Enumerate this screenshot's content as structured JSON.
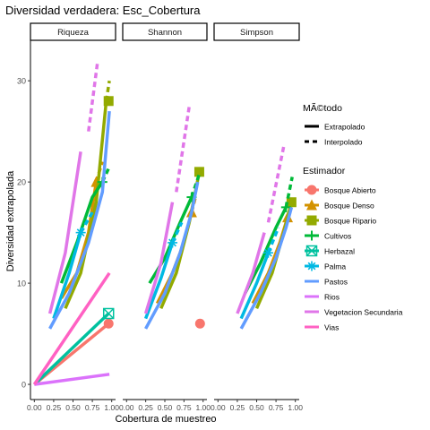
{
  "chart_data": {
    "type": "line",
    "title": "Diversidad verdadera: Esc_Cobertura",
    "xlabel": "Cobertura de muestreo",
    "ylabel": "Diversidad extrapolada",
    "xlim": [
      -0.05,
      1.05
    ],
    "ylim": [
      -1.5,
      34
    ],
    "x_ticks": [
      0.0,
      0.25,
      0.5,
      0.75,
      1.0
    ],
    "x_tick_labels": [
      "0.00",
      "0.25",
      "0.50",
      "0.75",
      "1.00"
    ],
    "y_ticks": [
      0,
      10,
      20,
      30
    ],
    "y_tick_labels": [
      "0",
      "10",
      "20",
      "30"
    ],
    "grid": false,
    "facets": [
      "Riqueza",
      "Shannon",
      "Simpson"
    ],
    "legend_position": "right",
    "legend_method_title": "MÃ©todo",
    "legend_methods": [
      "Extrapolado",
      "Interpolado"
    ],
    "legend_estimator_title": "Estimador",
    "series": [
      {
        "name": "Bosque Abierto",
        "color": "#F8766D",
        "shape": "circle",
        "Riqueza": {
          "interp": [
            [
              0.0,
              0
            ],
            [
              0.96,
              6
            ]
          ],
          "extrap": [],
          "point": [
            0.96,
            6
          ]
        },
        "Shannon": {
          "interp": [],
          "extrap": [],
          "point": [
            0.96,
            6
          ]
        },
        "Simpson": {
          "interp": [],
          "extrap": [],
          "point": null
        }
      },
      {
        "name": "Bosque Denso",
        "color": "#D39200",
        "shape": "triangle",
        "Riqueza": {
          "interp": [
            [
              0.35,
              8.5
            ],
            [
              0.55,
              11
            ],
            [
              0.7,
              15
            ],
            [
              0.8,
              20
            ]
          ],
          "extrap": [
            [
              0.8,
              20
            ],
            [
              0.88,
              22
            ]
          ],
          "point": [
            0.8,
            20
          ]
        },
        "Shannon": {
          "interp": [
            [
              0.4,
              8
            ],
            [
              0.6,
              11
            ],
            [
              0.75,
              14
            ],
            [
              0.85,
              17
            ]
          ],
          "extrap": [
            [
              0.85,
              17
            ],
            [
              0.9,
              18.5
            ]
          ],
          "point": [
            0.85,
            17
          ]
        },
        "Simpson": {
          "interp": [
            [
              0.45,
              8
            ],
            [
              0.65,
              11
            ],
            [
              0.8,
              14
            ],
            [
              0.9,
              16.5
            ]
          ],
          "extrap": [
            [
              0.9,
              16.5
            ],
            [
              0.94,
              17.5
            ]
          ],
          "point": [
            0.9,
            16.5
          ]
        }
      },
      {
        "name": "Bosque Ripario",
        "color": "#93AA00",
        "shape": "square",
        "Riqueza": {
          "interp": [
            [
              0.4,
              7.5
            ],
            [
              0.6,
              11
            ],
            [
              0.8,
              18
            ],
            [
              0.93,
              28
            ]
          ],
          "extrap": [
            [
              0.93,
              28
            ],
            [
              0.97,
              30
            ]
          ],
          "point": [
            0.96,
            28
          ]
        },
        "Shannon": {
          "interp": [
            [
              0.45,
              7.5
            ],
            [
              0.65,
              11
            ],
            [
              0.82,
              16
            ],
            [
              0.95,
              21
            ]
          ],
          "extrap": [],
          "point": [
            0.95,
            21
          ]
        },
        "Simpson": {
          "interp": [
            [
              0.5,
              7.5
            ],
            [
              0.7,
              11
            ],
            [
              0.85,
              15
            ],
            [
              0.95,
              18
            ]
          ],
          "extrap": [],
          "point": [
            0.95,
            18
          ]
        }
      },
      {
        "name": "Cultivos",
        "color": "#00BA38",
        "shape": "plus",
        "Riqueza": {
          "interp": [
            [
              0.35,
              10
            ],
            [
              0.55,
              14
            ],
            [
              0.75,
              18.5
            ],
            [
              0.88,
              20
            ]
          ],
          "extrap": [
            [
              0.88,
              20
            ],
            [
              0.97,
              21.5
            ]
          ],
          "point": [
            0.88,
            20
          ]
        },
        "Shannon": {
          "interp": [
            [
              0.3,
              10
            ],
            [
              0.5,
              12.5
            ],
            [
              0.7,
              16
            ],
            [
              0.85,
              18.5
            ]
          ],
          "extrap": [
            [
              0.85,
              18.5
            ],
            [
              0.96,
              21
            ]
          ],
          "point": [
            0.85,
            18.5
          ]
        },
        "Simpson": {
          "interp": [
            [
              0.35,
              9
            ],
            [
              0.55,
              12
            ],
            [
              0.75,
              15.5
            ],
            [
              0.88,
              17.5
            ]
          ],
          "extrap": [
            [
              0.88,
              17.5
            ],
            [
              0.96,
              20.5
            ]
          ],
          "point": [
            0.88,
            17.5
          ]
        }
      },
      {
        "name": "Herbazal",
        "color": "#00C19F",
        "shape": "square-cross",
        "Riqueza": {
          "interp": [
            [
              0.0,
              0
            ],
            [
              0.96,
              7
            ]
          ],
          "extrap": [],
          "point": [
            0.96,
            7
          ]
        },
        "Shannon": {
          "interp": [],
          "extrap": [],
          "point": null
        },
        "Simpson": {
          "interp": [],
          "extrap": [],
          "point": null
        }
      },
      {
        "name": "Palma",
        "color": "#00B9E3",
        "shape": "asterisk",
        "Riqueza": {
          "interp": [
            [
              0.25,
              6.5
            ],
            [
              0.45,
              11
            ],
            [
              0.6,
              15
            ]
          ],
          "extrap": [
            [
              0.6,
              15
            ],
            [
              0.75,
              17
            ]
          ],
          "point": [
            0.6,
            15
          ]
        },
        "Shannon": {
          "interp": [
            [
              0.25,
              6.5
            ],
            [
              0.45,
              10.5
            ],
            [
              0.6,
              14
            ]
          ],
          "extrap": [
            [
              0.6,
              14
            ],
            [
              0.72,
              16
            ]
          ],
          "point": [
            0.6,
            14
          ]
        },
        "Simpson": {
          "interp": [
            [
              0.3,
              6.5
            ],
            [
              0.5,
              10
            ],
            [
              0.65,
              13
            ]
          ],
          "extrap": [
            [
              0.65,
              13
            ],
            [
              0.78,
              15.5
            ]
          ],
          "point": [
            0.65,
            13
          ]
        }
      },
      {
        "name": "Pastos",
        "color": "#619CFF",
        "shape": "none",
        "Riqueza": {
          "interp": [
            [
              0.2,
              5.5
            ],
            [
              0.45,
              9
            ],
            [
              0.7,
              14
            ],
            [
              0.88,
              19
            ],
            [
              0.97,
              27
            ]
          ],
          "extrap": [],
          "point": null
        },
        "Shannon": {
          "interp": [
            [
              0.25,
              5.5
            ],
            [
              0.5,
              9
            ],
            [
              0.7,
              13
            ],
            [
              0.85,
              17
            ],
            [
              0.93,
              20
            ]
          ],
          "extrap": [],
          "point": null
        },
        "Simpson": {
          "interp": [
            [
              0.3,
              5.5
            ],
            [
              0.55,
              9
            ],
            [
              0.75,
              12.5
            ],
            [
              0.88,
              15.5
            ],
            [
              0.95,
              17.5
            ]
          ],
          "extrap": [],
          "point": null
        }
      },
      {
        "name": "Rios",
        "color": "#DB72FB",
        "shape": "none",
        "Riqueza": {
          "interp": [
            [
              0.0,
              0
            ],
            [
              0.97,
              1
            ]
          ],
          "extrap": [],
          "point": null
        },
        "Shannon": {
          "interp": [],
          "extrap": [],
          "point": null
        },
        "Simpson": {
          "interp": [],
          "extrap": [],
          "point": null
        }
      },
      {
        "name": "Vegetacion Secundaria",
        "color": "#E076E8",
        "shape": "none",
        "Riqueza": {
          "interp": [
            [
              0.2,
              7
            ],
            [
              0.4,
              13
            ],
            [
              0.6,
              23
            ]
          ],
          "extrap": [
            [
              0.7,
              25
            ],
            [
              0.82,
              32
            ]
          ],
          "point": null
        },
        "Shannon": {
          "interp": [
            [
              0.25,
              7
            ],
            [
              0.45,
              12
            ],
            [
              0.6,
              18
            ]
          ],
          "extrap": [
            [
              0.65,
              19
            ],
            [
              0.82,
              27.5
            ]
          ],
          "point": null
        },
        "Simpson": {
          "interp": [
            [
              0.25,
              7
            ],
            [
              0.45,
              11
            ],
            [
              0.6,
              15
            ]
          ],
          "extrap": [
            [
              0.65,
              16
            ],
            [
              0.85,
              23.5
            ]
          ],
          "point": null
        }
      },
      {
        "name": "Vias",
        "color": "#FF61C3",
        "shape": "none",
        "Riqueza": {
          "interp": [
            [
              0.0,
              0
            ],
            [
              0.97,
              11
            ]
          ],
          "extrap": [],
          "point": null
        },
        "Shannon": {
          "interp": [],
          "extrap": [],
          "point": null
        },
        "Simpson": {
          "interp": [],
          "extrap": [],
          "point": null
        }
      }
    ]
  }
}
